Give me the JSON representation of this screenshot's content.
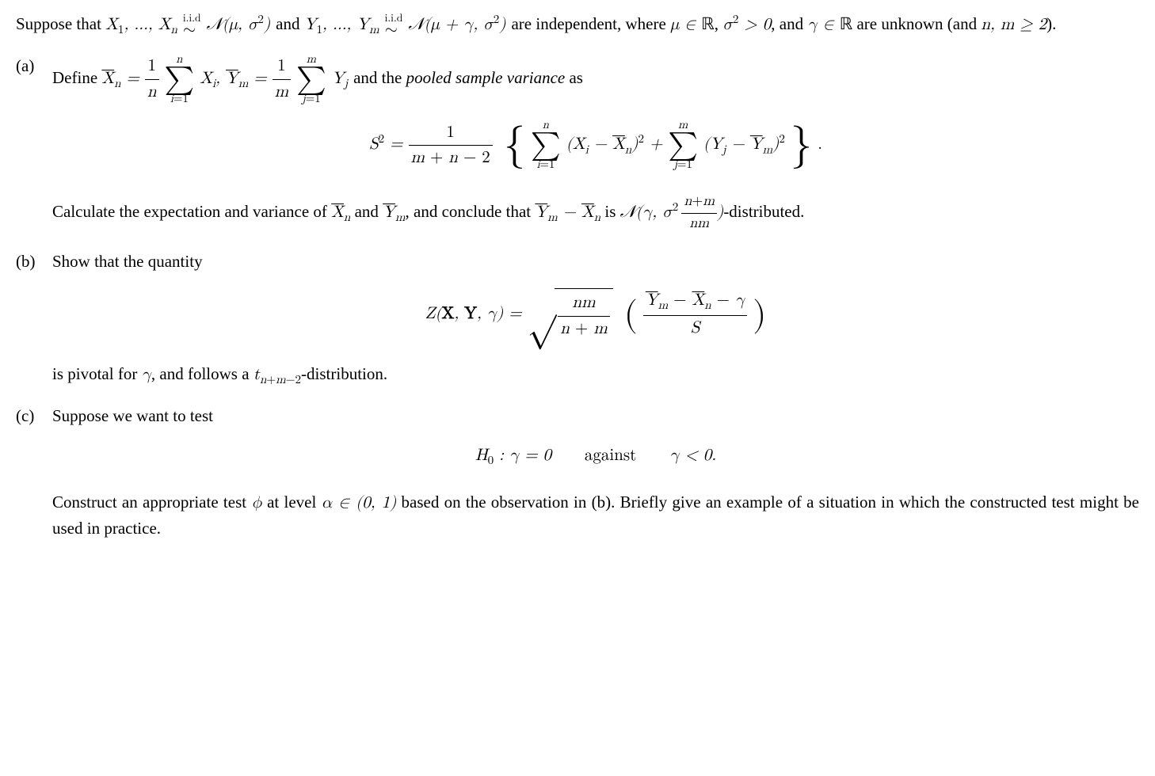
{
  "intro_1": "Suppose that ",
  "intro_2": " and ",
  "intro_3": " are independent, where ",
  "intro_4": ", and ",
  "intro_5": " are unknown (and ",
  "intro_6": ").",
  "mu_in_R": "μ ∈ ",
  "R": "ℝ",
  "sigma_gt0": "σ² > 0",
  "gamma_in_R": "γ ∈ ",
  "nm_ge2": "n, m ≥ 2",
  "iid": "i.i.d",
  "tilde": "∼",
  "X_seq": "X₁, …, Xₙ",
  "Y_seq": "Y₁, …, Yₘ",
  "N_mu": "𝒩(μ, σ²)",
  "N_mu_gamma": "𝒩(μ + γ, σ²)",
  "a_label": "(a)",
  "a_define": "Define ",
  "a_and": " and the ",
  "pooled": "pooled sample variance",
  "a_as": " as",
  "Xbar_def_lhs": "X̄ₙ = ",
  "Ybar_def_lhs": ", Ȳₘ = ",
  "one_over_n_num": "1",
  "one_over_n_den": "n",
  "one_over_m_num": "1",
  "one_over_m_den": "m",
  "sum_n_top": "n",
  "sum_n_bot": "i=1",
  "sum_m_top": "m",
  "sum_m_bot": "j=1",
  "Xi": "Xᵢ",
  "Yj": "Yⱼ",
  "S2_lhs": "S² = ",
  "S2_frac_num": "1",
  "S2_frac_den": "m + n − 2",
  "Xi_minus_Xbar": "(Xᵢ − X̄ₙ)²",
  "Yj_minus_Ybar": "(Yⱼ − Ȳₘ)²",
  "plus": " + ",
  "period": ".",
  "a_conclude_1": "Calculate the expectation and variance of ",
  "Xbar": "X̄ₙ",
  "Ybar": "Ȳₘ",
  "a_conclude_2": " and ",
  "a_conclude_3": ", and conclude that ",
  "Ybar_minus_Xbar": "Ȳₘ − X̄ₙ",
  "a_conclude_4": " is ",
  "N_gamma": "𝒩(γ, σ²",
  "N_gamma_close": ")-distributed.",
  "nm_frac_num": "n + m",
  "nm_frac_den": "nm",
  "b_label": "(b)",
  "b_text": "Show that the quantity",
  "Z_lhs": "Z(",
  "X_bold": "X",
  "Y_bold": "Y",
  "Z_lhs2": ", γ) = ",
  "comma": ", ",
  "sqrt_num": "nm",
  "sqrt_den": "n + m",
  "Z_paren_num": "Ȳₘ − X̄ₙ − γ",
  "Z_paren_den": "S",
  "b_pivotal_1": "is pivotal for ",
  "gamma": "γ",
  "b_pivotal_2": ", and follows a ",
  "t_dist": "tₙ₊ₘ₋₂",
  "b_pivotal_3": "-distribution.",
  "c_label": "(c)",
  "c_text": "Suppose we want to test",
  "H0_lhs": "H₀ : γ = 0",
  "against": "against",
  "H1": "γ < 0.",
  "c_para_1": "Construct an appropriate test ",
  "phi": "ϕ",
  "c_para_2": " at level ",
  "alpha_in": "α ∈ (0, 1)",
  "c_para_3": " based on the observation in (b). Briefly give an example of a situation in which the constructed test might be used in practice.",
  "colors": {
    "text": "#000000",
    "bg": "#ffffff"
  },
  "fontsize_body_pt": 16,
  "fontsize_sub_ratio": 0.72
}
